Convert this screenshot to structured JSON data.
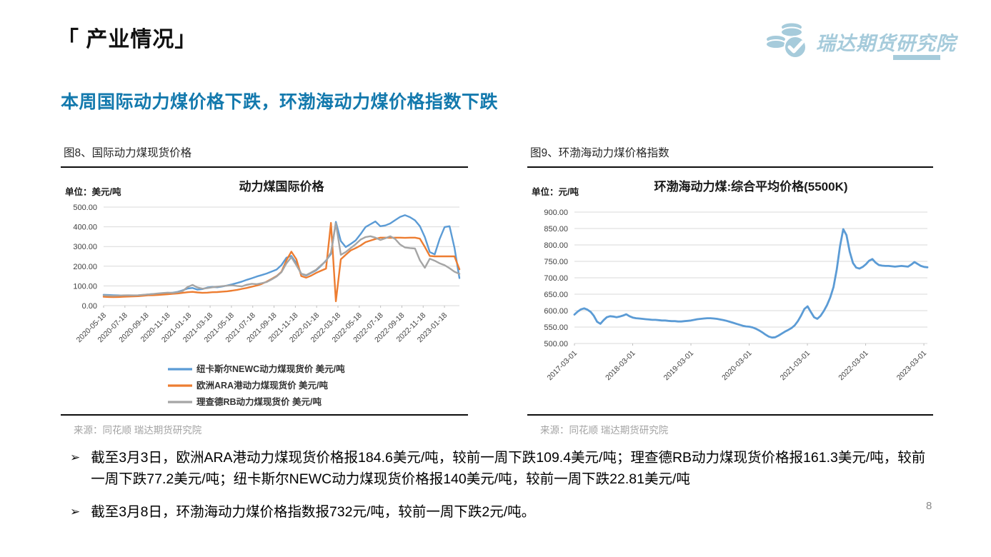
{
  "header": {
    "title": "「 产业情况」",
    "logo_text": "瑞达期货研究院"
  },
  "subtitle": "本周国际动力煤价格下跌，环渤海动力煤价格指数下跌",
  "bullet_marker": "➢",
  "bullets": [
    "截至3月3日，欧洲ARA港动力煤现货价格报184.6美元/吨，较前一周下跌109.4美元/吨；理查德RB动力煤现货价格报161.3美元/吨，较前一周下跌77.2美元/吨；纽卡斯尔NEWC动力煤现货价格报140美元/吨，较前一周下跌22.81美元/吨",
    "截至3月8日，环渤海动力煤价格指数报732元/吨，较前一周下跌2元/吨。"
  ],
  "panels": [
    {
      "caption": "图8、国际动力煤现货价格",
      "source": "来源：同花顺  瑞达期货研究院"
    },
    {
      "caption": "图9、环渤海动力煤价格指数",
      "source": "来源：同花顺  瑞达期货研究院"
    }
  ],
  "page_number": "8",
  "colors": {
    "accent_blue": "#1379ad",
    "logo_blue": "#a6cbdb",
    "series_blue": "#5B9BD5",
    "series_orange": "#ED7D31",
    "series_gray": "#A5A5A5",
    "gridline": "#d9d9d9"
  },
  "chart_data": [
    {
      "type": "line",
      "title": "动力煤国际价格",
      "unit_label": "单位：美元/吨",
      "xlabel": "",
      "ylabel": "",
      "ylim": [
        0,
        500
      ],
      "ytick_step": 100,
      "grid": true,
      "legend_position": "bottom",
      "x_tick_labels": [
        "2020-05-18",
        "2020-07-18",
        "2020-09-18",
        "2020-11-18",
        "2021-01-18",
        "2021-03-18",
        "2021-05-18",
        "2021-07-18",
        "2021-09-18",
        "2021-11-18",
        "2022-01-18",
        "2022-03-18",
        "2022-05-18",
        "2022-07-18",
        "2022-09-18",
        "2022-11-18",
        "2023-01-18"
      ],
      "series": [
        {
          "name": "纽卡斯尔NEWC动力煤现货价 美元/吨",
          "color": "#5B9BD5",
          "values": [
            55,
            54,
            53,
            52,
            51,
            50,
            51,
            52,
            54,
            57,
            59,
            58,
            61,
            63,
            66,
            70,
            78,
            87,
            90,
            81,
            84,
            92,
            95,
            93,
            97,
            102,
            108,
            115,
            122,
            131,
            139,
            148,
            155,
            163,
            173,
            183,
            206,
            243,
            252,
            215,
            161,
            153,
            166,
            179,
            202,
            229,
            262,
            425,
            328,
            297,
            313,
            331,
            363,
            399,
            413,
            427,
            403,
            407,
            417,
            434,
            450,
            459,
            449,
            433,
            403,
            348,
            272,
            260,
            338,
            399,
            403,
            293,
            140
          ]
        },
        {
          "name": "欧洲ARA港动力煤现货价 美元/吨",
          "color": "#ED7D31",
          "values": [
            45,
            44,
            43,
            44,
            45,
            46,
            47,
            48,
            50,
            52,
            53,
            54,
            56,
            58,
            60,
            62,
            65,
            68,
            70,
            67,
            65,
            66,
            68,
            69,
            71,
            73,
            76,
            80,
            85,
            90,
            96,
            102,
            110,
            122,
            136,
            150,
            172,
            230,
            274,
            235,
            150,
            142,
            152,
            166,
            177,
            188,
            420,
            22,
            235,
            258,
            280,
            292,
            305,
            322,
            330,
            338,
            345,
            345,
            344,
            345,
            345,
            344,
            345,
            345,
            340,
            298,
            252,
            250,
            250,
            250,
            250,
            250,
            184.6
          ]
        },
        {
          "name": "理查德RB动力煤现货价 美元/吨",
          "color": "#A5A5A5",
          "values": [
            52,
            51,
            50,
            51,
            52,
            53,
            52,
            53,
            55,
            57,
            59,
            62,
            64,
            66,
            65,
            68,
            74,
            95,
            105,
            92,
            86,
            89,
            93,
            96,
            99,
            101,
            103,
            100,
            98,
            106,
            111,
            109,
            114,
            120,
            133,
            148,
            170,
            215,
            246,
            205,
            162,
            155,
            168,
            182,
            205,
            226,
            270,
            418,
            258,
            272,
            292,
            312,
            335,
            348,
            352,
            345,
            333,
            342,
            352,
            338,
            310,
            295,
            292,
            290,
            230,
            192,
            238,
            228,
            215,
            205,
            190,
            172,
            161.3
          ]
        }
      ]
    },
    {
      "type": "line",
      "title": "环渤海动力煤:综合平均价格(5500K)",
      "unit_label": "单位：元/吨",
      "xlabel": "",
      "ylabel": "",
      "ylim": [
        500,
        900
      ],
      "ytick_step": 50,
      "grid": true,
      "legend_position": "none",
      "x_tick_labels": [
        "2017-03-01",
        "2018-03-01",
        "2019-03-01",
        "2020-03-01",
        "2021-03-01",
        "2022-03-01",
        "2023-03-01"
      ],
      "series": [
        {
          "name": "环渤海动力煤:综合平均价格(5500K)",
          "color": "#5B9BD5",
          "values": [
            588,
            597,
            604,
            607,
            603,
            596,
            584,
            566,
            560,
            571,
            580,
            583,
            582,
            580,
            582,
            585,
            589,
            583,
            579,
            577,
            576,
            575,
            574,
            573,
            572,
            572,
            571,
            570,
            570,
            569,
            568,
            568,
            567,
            567,
            568,
            569,
            570,
            572,
            574,
            575,
            576,
            577,
            577,
            576,
            575,
            573,
            571,
            569,
            566,
            563,
            560,
            557,
            554,
            552,
            551,
            549,
            545,
            540,
            534,
            527,
            521,
            518,
            519,
            524,
            530,
            536,
            541,
            547,
            555,
            568,
            585,
            605,
            613,
            596,
            580,
            575,
            584,
            599,
            617,
            640,
            672,
            725,
            795,
            848,
            830,
            780,
            745,
            731,
            728,
            733,
            741,
            752,
            757,
            746,
            739,
            737,
            736,
            736,
            735,
            734,
            735,
            736,
            735,
            734,
            740,
            748,
            742,
            736,
            733,
            732
          ]
        }
      ]
    }
  ]
}
